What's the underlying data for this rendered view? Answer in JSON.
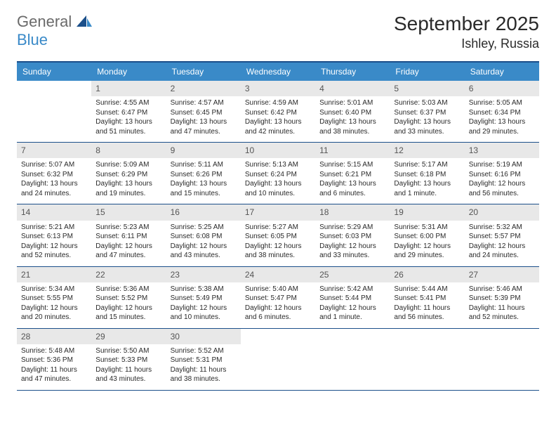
{
  "brand": {
    "word1": "General",
    "word2": "Blue",
    "word1_color": "#6a6a6a",
    "word2_color": "#3a8ac8"
  },
  "title": {
    "month_year": "September 2025",
    "location": "Ishley, Russia"
  },
  "colors": {
    "header_bg": "#3a8ac8",
    "header_text": "#ffffff",
    "top_rule": "#1b4f8a",
    "week_rule": "#1b4f8a",
    "daynum_bg": "#e8e8e8",
    "daynum_text": "#555555",
    "body_text": "#2a2a2a",
    "page_bg": "#ffffff"
  },
  "typography": {
    "month_title_fontsize": 28,
    "location_fontsize": 18,
    "weekday_fontsize": 12,
    "daynum_fontsize": 12,
    "info_fontsize": 10
  },
  "weekdays": [
    "Sunday",
    "Monday",
    "Tuesday",
    "Wednesday",
    "Thursday",
    "Friday",
    "Saturday"
  ],
  "weeks": [
    [
      {
        "n": "",
        "sunrise": "",
        "sunset": "",
        "daylight": ""
      },
      {
        "n": "1",
        "sunrise": "Sunrise: 4:55 AM",
        "sunset": "Sunset: 6:47 PM",
        "daylight": "Daylight: 13 hours and 51 minutes."
      },
      {
        "n": "2",
        "sunrise": "Sunrise: 4:57 AM",
        "sunset": "Sunset: 6:45 PM",
        "daylight": "Daylight: 13 hours and 47 minutes."
      },
      {
        "n": "3",
        "sunrise": "Sunrise: 4:59 AM",
        "sunset": "Sunset: 6:42 PM",
        "daylight": "Daylight: 13 hours and 42 minutes."
      },
      {
        "n": "4",
        "sunrise": "Sunrise: 5:01 AM",
        "sunset": "Sunset: 6:40 PM",
        "daylight": "Daylight: 13 hours and 38 minutes."
      },
      {
        "n": "5",
        "sunrise": "Sunrise: 5:03 AM",
        "sunset": "Sunset: 6:37 PM",
        "daylight": "Daylight: 13 hours and 33 minutes."
      },
      {
        "n": "6",
        "sunrise": "Sunrise: 5:05 AM",
        "sunset": "Sunset: 6:34 PM",
        "daylight": "Daylight: 13 hours and 29 minutes."
      }
    ],
    [
      {
        "n": "7",
        "sunrise": "Sunrise: 5:07 AM",
        "sunset": "Sunset: 6:32 PM",
        "daylight": "Daylight: 13 hours and 24 minutes."
      },
      {
        "n": "8",
        "sunrise": "Sunrise: 5:09 AM",
        "sunset": "Sunset: 6:29 PM",
        "daylight": "Daylight: 13 hours and 19 minutes."
      },
      {
        "n": "9",
        "sunrise": "Sunrise: 5:11 AM",
        "sunset": "Sunset: 6:26 PM",
        "daylight": "Daylight: 13 hours and 15 minutes."
      },
      {
        "n": "10",
        "sunrise": "Sunrise: 5:13 AM",
        "sunset": "Sunset: 6:24 PM",
        "daylight": "Daylight: 13 hours and 10 minutes."
      },
      {
        "n": "11",
        "sunrise": "Sunrise: 5:15 AM",
        "sunset": "Sunset: 6:21 PM",
        "daylight": "Daylight: 13 hours and 6 minutes."
      },
      {
        "n": "12",
        "sunrise": "Sunrise: 5:17 AM",
        "sunset": "Sunset: 6:18 PM",
        "daylight": "Daylight: 13 hours and 1 minute."
      },
      {
        "n": "13",
        "sunrise": "Sunrise: 5:19 AM",
        "sunset": "Sunset: 6:16 PM",
        "daylight": "Daylight: 12 hours and 56 minutes."
      }
    ],
    [
      {
        "n": "14",
        "sunrise": "Sunrise: 5:21 AM",
        "sunset": "Sunset: 6:13 PM",
        "daylight": "Daylight: 12 hours and 52 minutes."
      },
      {
        "n": "15",
        "sunrise": "Sunrise: 5:23 AM",
        "sunset": "Sunset: 6:11 PM",
        "daylight": "Daylight: 12 hours and 47 minutes."
      },
      {
        "n": "16",
        "sunrise": "Sunrise: 5:25 AM",
        "sunset": "Sunset: 6:08 PM",
        "daylight": "Daylight: 12 hours and 43 minutes."
      },
      {
        "n": "17",
        "sunrise": "Sunrise: 5:27 AM",
        "sunset": "Sunset: 6:05 PM",
        "daylight": "Daylight: 12 hours and 38 minutes."
      },
      {
        "n": "18",
        "sunrise": "Sunrise: 5:29 AM",
        "sunset": "Sunset: 6:03 PM",
        "daylight": "Daylight: 12 hours and 33 minutes."
      },
      {
        "n": "19",
        "sunrise": "Sunrise: 5:31 AM",
        "sunset": "Sunset: 6:00 PM",
        "daylight": "Daylight: 12 hours and 29 minutes."
      },
      {
        "n": "20",
        "sunrise": "Sunrise: 5:32 AM",
        "sunset": "Sunset: 5:57 PM",
        "daylight": "Daylight: 12 hours and 24 minutes."
      }
    ],
    [
      {
        "n": "21",
        "sunrise": "Sunrise: 5:34 AM",
        "sunset": "Sunset: 5:55 PM",
        "daylight": "Daylight: 12 hours and 20 minutes."
      },
      {
        "n": "22",
        "sunrise": "Sunrise: 5:36 AM",
        "sunset": "Sunset: 5:52 PM",
        "daylight": "Daylight: 12 hours and 15 minutes."
      },
      {
        "n": "23",
        "sunrise": "Sunrise: 5:38 AM",
        "sunset": "Sunset: 5:49 PM",
        "daylight": "Daylight: 12 hours and 10 minutes."
      },
      {
        "n": "24",
        "sunrise": "Sunrise: 5:40 AM",
        "sunset": "Sunset: 5:47 PM",
        "daylight": "Daylight: 12 hours and 6 minutes."
      },
      {
        "n": "25",
        "sunrise": "Sunrise: 5:42 AM",
        "sunset": "Sunset: 5:44 PM",
        "daylight": "Daylight: 12 hours and 1 minute."
      },
      {
        "n": "26",
        "sunrise": "Sunrise: 5:44 AM",
        "sunset": "Sunset: 5:41 PM",
        "daylight": "Daylight: 11 hours and 56 minutes."
      },
      {
        "n": "27",
        "sunrise": "Sunrise: 5:46 AM",
        "sunset": "Sunset: 5:39 PM",
        "daylight": "Daylight: 11 hours and 52 minutes."
      }
    ],
    [
      {
        "n": "28",
        "sunrise": "Sunrise: 5:48 AM",
        "sunset": "Sunset: 5:36 PM",
        "daylight": "Daylight: 11 hours and 47 minutes."
      },
      {
        "n": "29",
        "sunrise": "Sunrise: 5:50 AM",
        "sunset": "Sunset: 5:33 PM",
        "daylight": "Daylight: 11 hours and 43 minutes."
      },
      {
        "n": "30",
        "sunrise": "Sunrise: 5:52 AM",
        "sunset": "Sunset: 5:31 PM",
        "daylight": "Daylight: 11 hours and 38 minutes."
      },
      {
        "n": "",
        "sunrise": "",
        "sunset": "",
        "daylight": ""
      },
      {
        "n": "",
        "sunrise": "",
        "sunset": "",
        "daylight": ""
      },
      {
        "n": "",
        "sunrise": "",
        "sunset": "",
        "daylight": ""
      },
      {
        "n": "",
        "sunrise": "",
        "sunset": "",
        "daylight": ""
      }
    ]
  ]
}
